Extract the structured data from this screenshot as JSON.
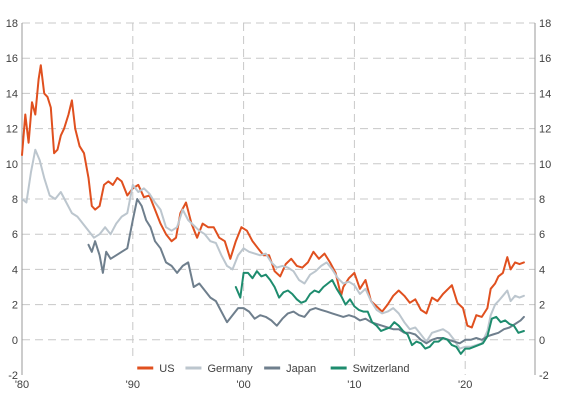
{
  "chart_data": {
    "type": "line",
    "title": "",
    "xlabel": "",
    "ylabel": "",
    "xlim": [
      1980,
      2026.3
    ],
    "ylim": [
      -2,
      18
    ],
    "x_ticks": [
      {
        "value": 1980,
        "label": "'80"
      },
      {
        "value": 1990,
        "label": "'90"
      },
      {
        "value": 2000,
        "label": "'00"
      },
      {
        "value": 2010,
        "label": "'10"
      },
      {
        "value": 2020,
        "label": "'20"
      }
    ],
    "y_ticks": [
      "-2",
      "0",
      "2",
      "4",
      "6",
      "8",
      "10",
      "12",
      "14",
      "16",
      "18"
    ],
    "y_tick_values": [
      -2,
      0,
      2,
      4,
      6,
      8,
      10,
      12,
      14,
      16,
      18
    ],
    "grid": true,
    "legend_position": "bottom",
    "series": [
      {
        "name": "US",
        "color": "#E0501F",
        "x": [
          1980.0,
          1980.3,
          1980.6,
          1980.9,
          1981.2,
          1981.5,
          1981.7,
          1982.0,
          1982.3,
          1982.6,
          1982.9,
          1983.2,
          1983.5,
          1983.8,
          1984.2,
          1984.5,
          1984.8,
          1985.2,
          1985.6,
          1986.0,
          1986.3,
          1986.6,
          1987.0,
          1987.4,
          1987.8,
          1988.2,
          1988.6,
          1989.0,
          1989.5,
          1990.0,
          1990.5,
          1991.0,
          1991.5,
          1992.0,
          1992.5,
          1993.0,
          1993.5,
          1993.9,
          1994.3,
          1994.8,
          1995.3,
          1995.8,
          1996.3,
          1996.8,
          1997.3,
          1997.8,
          1998.3,
          1998.8,
          1999.3,
          1999.8,
          2000.3,
          2000.8,
          2001.3,
          2001.8,
          2002.3,
          2002.8,
          2003.3,
          2003.8,
          2004.3,
          2004.8,
          2005.3,
          2005.8,
          2006.3,
          2006.8,
          2007.3,
          2007.8,
          2008.3,
          2008.8,
          2009.0,
          2009.5,
          2010.0,
          2010.5,
          2011.0,
          2011.5,
          2012.0,
          2012.5,
          2013.0,
          2013.5,
          2014.0,
          2014.5,
          2015.0,
          2015.5,
          2016.0,
          2016.5,
          2017.0,
          2017.5,
          2018.0,
          2018.8,
          2019.3,
          2019.8,
          2020.2,
          2020.6,
          2021.0,
          2021.5,
          2022.0,
          2022.3,
          2022.7,
          2023.0,
          2023.4,
          2023.8,
          2024.1,
          2024.5,
          2024.9,
          2025.3
        ],
        "y": [
          10.5,
          12.8,
          11.2,
          13.5,
          12.8,
          14.8,
          15.6,
          14.0,
          13.8,
          13.2,
          10.6,
          10.8,
          11.6,
          12.0,
          12.8,
          13.6,
          12.0,
          11.0,
          10.6,
          9.2,
          7.6,
          7.4,
          7.6,
          8.8,
          9.0,
          8.8,
          9.2,
          9.0,
          8.2,
          8.6,
          8.8,
          8.1,
          8.2,
          7.4,
          6.6,
          6.0,
          5.6,
          5.8,
          7.2,
          7.8,
          6.6,
          5.8,
          6.6,
          6.4,
          6.4,
          5.8,
          5.6,
          4.6,
          5.6,
          6.4,
          6.2,
          5.6,
          5.2,
          4.8,
          4.8,
          3.9,
          3.6,
          4.3,
          4.6,
          4.2,
          4.1,
          4.4,
          5.0,
          4.6,
          4.9,
          4.4,
          3.8,
          2.5,
          3.0,
          3.5,
          3.8,
          2.9,
          3.4,
          2.2,
          1.9,
          1.6,
          2.0,
          2.5,
          2.8,
          2.5,
          2.1,
          2.3,
          1.7,
          1.5,
          2.4,
          2.2,
          2.6,
          3.1,
          2.1,
          1.8,
          0.8,
          0.7,
          1.4,
          1.3,
          1.8,
          2.9,
          3.2,
          3.6,
          3.8,
          4.7,
          4.0,
          4.4,
          4.3,
          4.4
        ]
      },
      {
        "name": "Germany",
        "color": "#BCC6CE",
        "x": [
          1980.0,
          1980.4,
          1980.8,
          1981.2,
          1981.6,
          1982.0,
          1982.5,
          1983.0,
          1983.5,
          1984.0,
          1984.5,
          1985.0,
          1985.5,
          1986.0,
          1986.5,
          1987.0,
          1987.5,
          1988.0,
          1988.5,
          1989.0,
          1989.5,
          1990.0,
          1990.5,
          1991.0,
          1991.5,
          1992.0,
          1992.5,
          1993.0,
          1993.5,
          1994.0,
          1994.5,
          1995.0,
          1995.5,
          1996.0,
          1996.5,
          1997.0,
          1997.5,
          1998.0,
          1998.5,
          1999.0,
          1999.5,
          2000.0,
          2000.5,
          2001.0,
          2001.5,
          2002.0,
          2002.5,
          2003.0,
          2003.5,
          2004.0,
          2004.5,
          2005.0,
          2005.5,
          2006.0,
          2006.5,
          2007.0,
          2007.5,
          2008.0,
          2008.5,
          2009.0,
          2009.5,
          2010.0,
          2010.5,
          2011.0,
          2011.5,
          2012.0,
          2012.5,
          2013.0,
          2013.5,
          2014.0,
          2014.5,
          2015.0,
          2015.5,
          2016.0,
          2016.5,
          2017.0,
          2017.5,
          2018.0,
          2018.5,
          2019.0,
          2019.5,
          2020.0,
          2020.5,
          2021.0,
          2021.5,
          2022.0,
          2022.3,
          2022.7,
          2023.0,
          2023.4,
          2023.8,
          2024.1,
          2024.5,
          2024.9,
          2025.3
        ],
        "y": [
          8.0,
          7.8,
          9.5,
          10.8,
          10.2,
          9.2,
          8.2,
          8.0,
          8.4,
          7.8,
          7.2,
          7.0,
          6.6,
          6.2,
          5.8,
          6.0,
          6.4,
          6.0,
          6.6,
          7.0,
          7.2,
          8.8,
          8.4,
          8.6,
          8.3,
          7.8,
          7.4,
          6.4,
          6.2,
          6.4,
          7.4,
          6.8,
          6.5,
          6.2,
          6.0,
          5.6,
          5.5,
          4.8,
          4.2,
          4.0,
          4.8,
          5.2,
          5.0,
          4.9,
          4.8,
          4.9,
          4.4,
          4.1,
          4.2,
          4.1,
          3.9,
          3.4,
          3.2,
          3.7,
          3.9,
          4.2,
          4.4,
          4.0,
          3.5,
          3.2,
          3.3,
          3.1,
          2.6,
          2.9,
          2.2,
          1.7,
          1.5,
          1.6,
          1.8,
          1.5,
          1.0,
          0.6,
          0.7,
          0.3,
          -0.1,
          0.4,
          0.5,
          0.6,
          0.4,
          0.0,
          -0.5,
          -0.4,
          -0.4,
          -0.3,
          -0.2,
          0.5,
          1.4,
          2.0,
          2.2,
          2.5,
          2.8,
          2.2,
          2.5,
          2.4,
          2.5
        ]
      },
      {
        "name": "Japan",
        "color": "#6F7F8D",
        "x": [
          1986.0,
          1986.3,
          1986.6,
          1987.0,
          1987.3,
          1987.6,
          1988.0,
          1988.5,
          1989.0,
          1989.5,
          1990.0,
          1990.4,
          1990.8,
          1991.2,
          1991.6,
          1992.0,
          1992.5,
          1993.0,
          1993.5,
          1994.0,
          1994.5,
          1995.0,
          1995.5,
          1996.0,
          1996.5,
          1997.0,
          1997.5,
          1998.0,
          1998.5,
          1999.0,
          1999.5,
          2000.0,
          2000.5,
          2001.0,
          2001.5,
          2002.0,
          2002.5,
          2003.0,
          2003.5,
          2004.0,
          2004.5,
          2005.0,
          2005.5,
          2006.0,
          2006.5,
          2007.0,
          2007.5,
          2008.0,
          2008.5,
          2009.0,
          2009.5,
          2010.0,
          2010.5,
          2011.0,
          2011.5,
          2012.0,
          2012.5,
          2013.0,
          2013.5,
          2014.0,
          2014.5,
          2015.0,
          2015.5,
          2016.0,
          2016.5,
          2017.0,
          2017.5,
          2018.0,
          2018.5,
          2019.0,
          2019.5,
          2020.0,
          2020.5,
          2021.0,
          2021.5,
          2022.0,
          2022.5,
          2023.0,
          2023.5,
          2024.0,
          2024.5,
          2025.0,
          2025.3
        ],
        "y": [
          5.4,
          5.0,
          5.6,
          4.8,
          3.8,
          5.0,
          4.6,
          4.8,
          5.0,
          5.2,
          6.8,
          8.0,
          7.6,
          6.8,
          6.4,
          5.6,
          5.2,
          4.4,
          4.2,
          3.8,
          4.2,
          4.4,
          3.0,
          3.2,
          2.8,
          2.4,
          2.2,
          1.6,
          1.0,
          1.4,
          1.8,
          1.8,
          1.6,
          1.2,
          1.4,
          1.3,
          1.1,
          0.8,
          1.2,
          1.5,
          1.6,
          1.4,
          1.3,
          1.7,
          1.8,
          1.7,
          1.6,
          1.5,
          1.4,
          1.3,
          1.4,
          1.3,
          1.1,
          1.2,
          1.0,
          0.9,
          0.8,
          0.7,
          0.6,
          0.6,
          0.4,
          0.4,
          0.3,
          0.0,
          -0.2,
          0.0,
          0.1,
          0.1,
          0.0,
          -0.1,
          -0.2,
          0.0,
          0.0,
          0.1,
          0.0,
          0.2,
          0.3,
          0.4,
          0.6,
          0.7,
          0.9,
          1.1,
          1.3
        ]
      },
      {
        "name": "Switzerland",
        "color": "#1E8C6E",
        "x": [
          1999.3,
          1999.7,
          2000.0,
          2000.4,
          2000.8,
          2001.2,
          2001.6,
          2002.0,
          2002.4,
          2002.8,
          2003.2,
          2003.6,
          2004.0,
          2004.4,
          2004.8,
          2005.2,
          2005.6,
          2006.0,
          2006.4,
          2006.8,
          2007.2,
          2007.6,
          2008.0,
          2008.4,
          2008.8,
          2009.2,
          2009.6,
          2010.0,
          2010.4,
          2010.8,
          2011.2,
          2011.6,
          2012.0,
          2012.4,
          2012.8,
          2013.2,
          2013.6,
          2014.0,
          2014.4,
          2014.8,
          2015.2,
          2015.6,
          2016.0,
          2016.4,
          2016.8,
          2017.2,
          2017.6,
          2018.0,
          2018.4,
          2018.8,
          2019.2,
          2019.6,
          2020.0,
          2020.4,
          2020.8,
          2021.2,
          2021.6,
          2022.0,
          2022.4,
          2022.8,
          2023.2,
          2023.6,
          2024.0,
          2024.4,
          2024.8,
          2025.3
        ],
        "y": [
          3.0,
          2.4,
          3.8,
          3.8,
          3.5,
          3.9,
          3.6,
          3.7,
          3.4,
          3.0,
          2.4,
          2.7,
          2.8,
          2.6,
          2.3,
          2.1,
          2.2,
          2.6,
          2.8,
          2.7,
          3.0,
          3.2,
          3.4,
          2.9,
          2.5,
          2.0,
          2.3,
          1.9,
          1.7,
          1.6,
          1.6,
          1.0,
          0.8,
          0.5,
          0.6,
          0.7,
          1.0,
          0.8,
          0.5,
          0.3,
          -0.3,
          -0.1,
          -0.2,
          -0.5,
          -0.4,
          -0.1,
          -0.1,
          0.1,
          0.0,
          -0.3,
          -0.4,
          -0.8,
          -0.5,
          -0.5,
          -0.4,
          -0.3,
          -0.2,
          0.2,
          1.2,
          1.3,
          1.0,
          1.1,
          0.9,
          0.8,
          0.4,
          0.5
        ]
      }
    ]
  }
}
